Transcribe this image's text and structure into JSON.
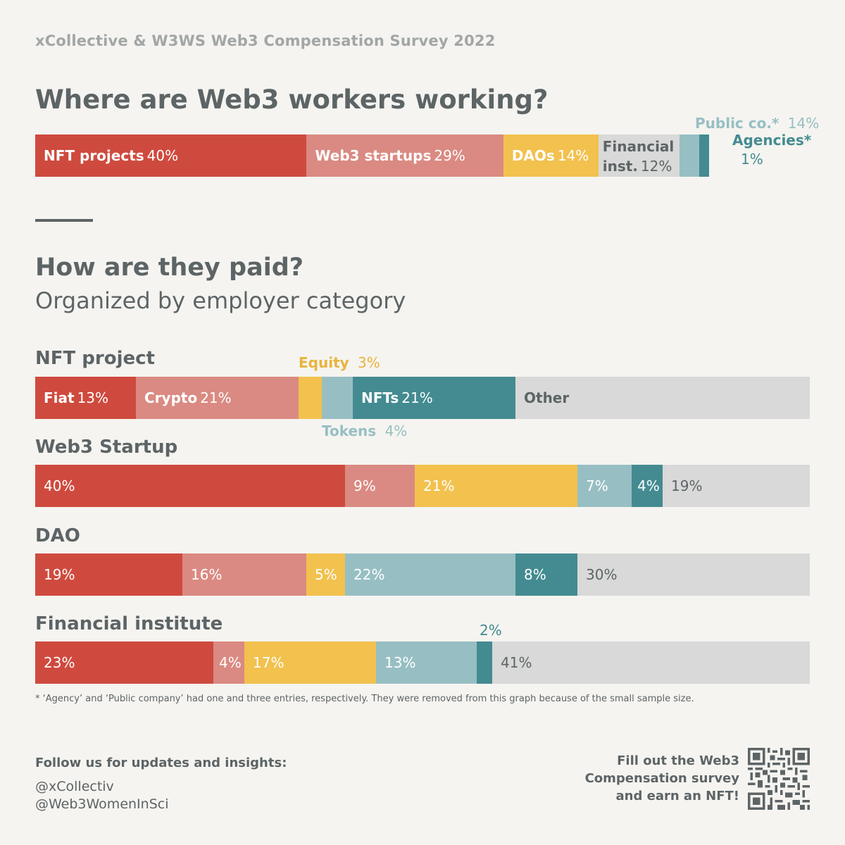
{
  "header": {
    "survey_title": "xCollective & W3WS Web3 Compensation Survey 2022"
  },
  "section1": {
    "title": "Where are Web3 workers working?"
  },
  "section2": {
    "title": "How are they paid?",
    "subtitle": "Organized by employer category"
  },
  "colors": {
    "fiat": "#cf4a3e",
    "crypto": "#da8a82",
    "equity": "#f2c14e",
    "tokens": "#97bfc3",
    "nfts": "#438b91",
    "other": "#d8d9d8",
    "financial": "#d8d9d8",
    "public": "#97bfc3",
    "agencies": "#438b91"
  },
  "chart_data": [
    {
      "type": "bar",
      "title": "Where are Web3 workers working?",
      "categories": [
        "NFT projects",
        "Web3 startups",
        "DAOs",
        "Financial inst.",
        "Public co.*",
        "Agencies*"
      ],
      "values": [
        40,
        29,
        14,
        12,
        14,
        1
      ],
      "labels": [
        "40%",
        "29%",
        "14%",
        "12%",
        "14%",
        "1%"
      ]
    },
    {
      "type": "bar",
      "title": "How are they paid?",
      "subtitle": "Organized by employer category",
      "payment_types": [
        "Fiat",
        "Crypto",
        "Equity",
        "Tokens",
        "NFTs",
        "Other"
      ],
      "rows": [
        {
          "name": "NFT project",
          "values": [
            13,
            21,
            3,
            4,
            21,
            38
          ],
          "labels": [
            "13%",
            "21%",
            "3%",
            "4%",
            "21%",
            ""
          ]
        },
        {
          "name": "Web3 Startup",
          "values": [
            40,
            9,
            21,
            7,
            4,
            19
          ],
          "labels": [
            "40%",
            "9%",
            "21%",
            "7%",
            "4%",
            "19%"
          ]
        },
        {
          "name": "DAO",
          "values": [
            19,
            16,
            5,
            22,
            8,
            30
          ],
          "labels": [
            "19%",
            "16%",
            "5%",
            "22%",
            "8%",
            "30%"
          ]
        },
        {
          "name": "Financial institute",
          "values": [
            23,
            4,
            17,
            13,
            2,
            41
          ],
          "labels": [
            "23%",
            "4%",
            "17%",
            "13%",
            "2%",
            "41%"
          ]
        }
      ]
    }
  ],
  "labels": {
    "fiat": "Fiat",
    "crypto": "Crypto",
    "equity": "Equity",
    "tokens": "Tokens",
    "nfts": "NFTs",
    "other": "Other",
    "financial_line1": "Financial",
    "financial_line2": "inst.",
    "public_co": "Public co.*",
    "agencies": "Agencies*"
  },
  "footnote": "* ‘Agency’ and ‘Public company’ had one and three entries, respectively. They were removed from this graph because of the small sample size.",
  "footer": {
    "follow": "Follow us for updates and insights:",
    "handle1": "@xCollectiv",
    "handle2": "@Web3WomenInSci",
    "cta_line1": "Fill out the Web3",
    "cta_line2": "Compensation survey",
    "cta_line3": "and earn an NFT!"
  }
}
